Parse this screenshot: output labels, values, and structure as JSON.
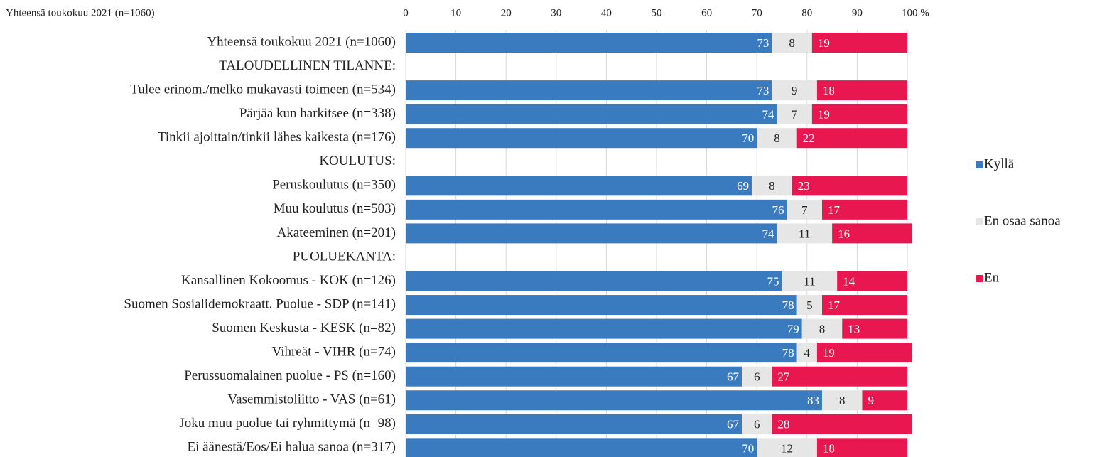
{
  "chart_data": {
    "type": "stacked-bar-horizontal",
    "title": "Yhteensä toukokuu 2021 (n=1060)",
    "categories": [
      "Yhteensä toukokuu 2021 (n=1060)",
      "TALOUDELLINEN TILANNE:",
      "Tulee erinom./melko mukavasti toimeen (n=534)",
      "Pärjää kun harkitsee (n=338)",
      "Tinkii ajoittain/tinkii lähes kaikesta (n=176)",
      "KOULUTUS:",
      "Peruskoulutus (n=350)",
      "Muu koulutus (n=503)",
      "Akateeminen (n=201)",
      "PUOLUEKANTA:",
      "Kansallinen Kokoomus - KOK (n=126)",
      "Suomen Sosialidemokraatt. Puolue - SDP (n=141)",
      "Suomen Keskusta - KESK (n=82)",
      "Vihreät - VIHR (n=74)",
      "Perussuomalainen puolue - PS (n=160)",
      "Vasemmistoliitto - VAS (n=61)",
      "Joku muu puolue tai ryhmittymä (n=98)",
      "Ei äänestä/Eos/Ei halua sanoa (n=317)"
    ],
    "series": [
      {
        "name": "Kyllä",
        "color": "#3a7bbf",
        "label_color": "#ffffff",
        "values": [
          73,
          null,
          73,
          74,
          70,
          null,
          69,
          76,
          74,
          null,
          75,
          78,
          79,
          78,
          67,
          83,
          67,
          70
        ]
      },
      {
        "name": "En osaa sanoa",
        "color": "#e6e6e6",
        "label_color": "#222222",
        "values": [
          8,
          null,
          9,
          7,
          8,
          null,
          8,
          7,
          11,
          null,
          11,
          5,
          8,
          4,
          6,
          8,
          6,
          12
        ]
      },
      {
        "name": "En",
        "color": "#e8174f",
        "label_color": "#ffffff",
        "values": [
          19,
          null,
          18,
          19,
          22,
          null,
          23,
          17,
          16,
          null,
          14,
          17,
          13,
          19,
          27,
          9,
          28,
          18
        ]
      }
    ],
    "xlim": [
      0,
      100
    ],
    "xticks": [
      0,
      10,
      20,
      30,
      40,
      50,
      60,
      70,
      80,
      90,
      {
        "value": 100,
        "label": "100 %"
      }
    ],
    "grid": true,
    "legend": "right"
  }
}
